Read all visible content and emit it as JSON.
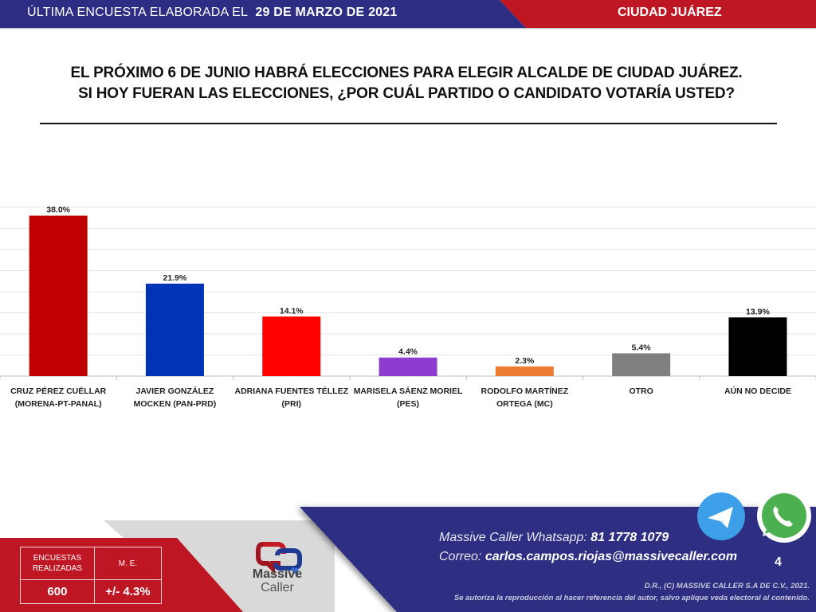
{
  "header": {
    "survey_prefix": "ÚLTIMA ENCUESTA ELABORADA EL",
    "survey_date": "29 DE MARZO DE 2021",
    "city": "CIUDAD JUÁREZ",
    "colors": {
      "blue": "#2d2e83",
      "red": "#be1622"
    }
  },
  "question": {
    "line1": "EL PRÓXIMO 6 DE JUNIO HABRÁ ELECCIONES PARA ELEGIR ALCALDE DE CIUDAD JUÁREZ.",
    "line2": "SI HOY FUERAN LAS ELECCIONES, ¿POR CUÁL PARTIDO O CANDIDATO VOTARÍA USTED?"
  },
  "chart_data": {
    "type": "bar",
    "title": "",
    "xlabel": "",
    "ylabel": "",
    "ylim": [
      0,
      40
    ],
    "ytick_step": 5,
    "grid": true,
    "value_format": "percent_1dp",
    "categories": [
      [
        "CRUZ PÉREZ CUÉLLAR",
        "(MORENA-PT-PANAL)"
      ],
      [
        "JAVIER GONZÁLEZ",
        "MOCKEN (PAN-PRD)"
      ],
      [
        "ADRIANA FUENTES TÉLLEZ",
        "(PRI)"
      ],
      [
        "MARISELA SÁENZ MORIEL",
        "(PES)"
      ],
      [
        "RODOLFO MARTÍNEZ",
        "ORTEGA (MC)"
      ],
      [
        "OTRO"
      ],
      [
        "AÚN NO DECIDE"
      ]
    ],
    "values": [
      38.0,
      21.9,
      14.1,
      4.4,
      2.3,
      5.4,
      13.9
    ],
    "labels": [
      "38.0%",
      "21.9%",
      "14.1%",
      "4.4%",
      "2.3%",
      "5.4%",
      "13.9%"
    ],
    "colors": [
      "#c00000",
      "#0033b5",
      "#ff0000",
      "#8e3cd0",
      "#ed7d31",
      "#7f7f7f",
      "#000000"
    ]
  },
  "footer": {
    "table": {
      "col1_header_line1": "ENCUESTAS",
      "col1_header_line2": "REALIZADAS",
      "col2_header": "M. E.",
      "col1_value": "600",
      "col2_value": "+/- 4.3%"
    },
    "logo": {
      "line1": "Massive",
      "line2": "Caller"
    },
    "whatsapp_label": "Massive Caller Whatsapp:",
    "whatsapp_number": "81 1778 1079",
    "email_label": "Correo:",
    "email": "carlos.campos.riojas@massivecaller.com",
    "page_number": "4",
    "legal_line1": "D.R., (C) MASSIVE CALLER S.A DE C.V., 2021.",
    "legal_line2": "Se autoriza la reproducción al hacer referencia del autor, salvo aplique veda electoral al contenido.",
    "icons": [
      "telegram-icon",
      "whatsapp-icon"
    ],
    "colors": {
      "blue": "#2d2e83",
      "red": "#be1622",
      "grey": "#d9d9d9",
      "telegram": "#3d9fe8",
      "whatsapp": "#4caf50"
    }
  }
}
